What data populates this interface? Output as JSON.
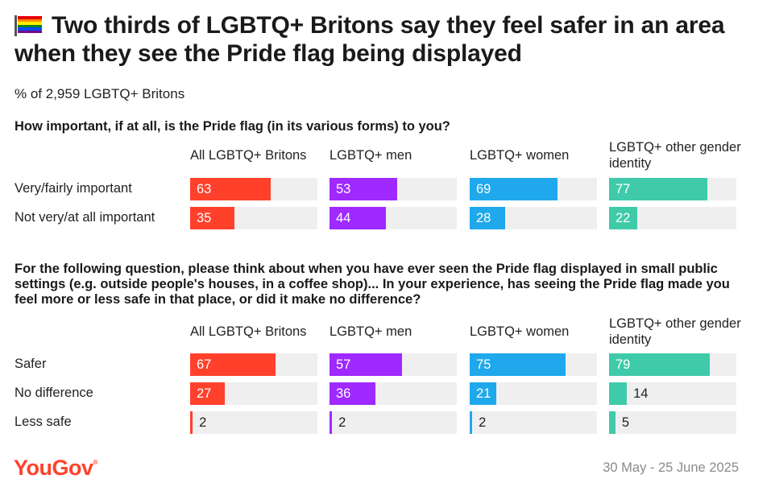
{
  "title": "Two thirds of LGBTQ+ Britons say they feel safer in an area when they see the Pride flag being displayed",
  "subtitle": "% of 2,959 LGBTQ+ Britons",
  "flag_icon": "pride-rainbow-flag",
  "columns": [
    "All LGBTQ+ Britons",
    "LGBTQ+ men",
    "LGBTQ+ women",
    "LGBTQ+ other gender identity"
  ],
  "colors": {
    "All LGBTQ+ Britons": "#ff412c",
    "LGBTQ+ men": "#9f29ff",
    "LGBTQ+ women": "#1fa8eb",
    "LGBTQ+ other gender identity": "#3fcaaa"
  },
  "chart_data": [
    {
      "type": "bar",
      "question": "How important, if at all, is the Pride flag (in its various forms) to you?",
      "categories": [
        "Very/fairly important",
        "Not very/at all important"
      ],
      "series": [
        {
          "name": "All LGBTQ+ Britons",
          "values": [
            63,
            35
          ]
        },
        {
          "name": "LGBTQ+ men",
          "values": [
            53,
            44
          ]
        },
        {
          "name": "LGBTQ+ women",
          "values": [
            69,
            28
          ]
        },
        {
          "name": "LGBTQ+ other gender identity",
          "values": [
            77,
            22
          ]
        }
      ],
      "xlim": [
        0,
        100
      ]
    },
    {
      "type": "bar",
      "question": "For the following question, please think about when you have ever seen the Pride flag displayed in small public settings (e.g. outside people's houses, in a coffee shop)... In your experience, has seeing the Pride flag made you feel more or less safe in that place, or did it make no difference?",
      "categories": [
        "Safer",
        "No difference",
        "Less safe"
      ],
      "series": [
        {
          "name": "All LGBTQ+ Britons",
          "values": [
            67,
            27,
            2
          ]
        },
        {
          "name": "LGBTQ+ men",
          "values": [
            57,
            36,
            2
          ]
        },
        {
          "name": "LGBTQ+ women",
          "values": [
            75,
            21,
            2
          ]
        },
        {
          "name": "LGBTQ+ other gender identity",
          "values": [
            79,
            14,
            5
          ]
        }
      ],
      "xlim": [
        0,
        100
      ]
    }
  ],
  "footer": {
    "logo": "YouGov",
    "date": "30 May - 25 June 2025"
  }
}
